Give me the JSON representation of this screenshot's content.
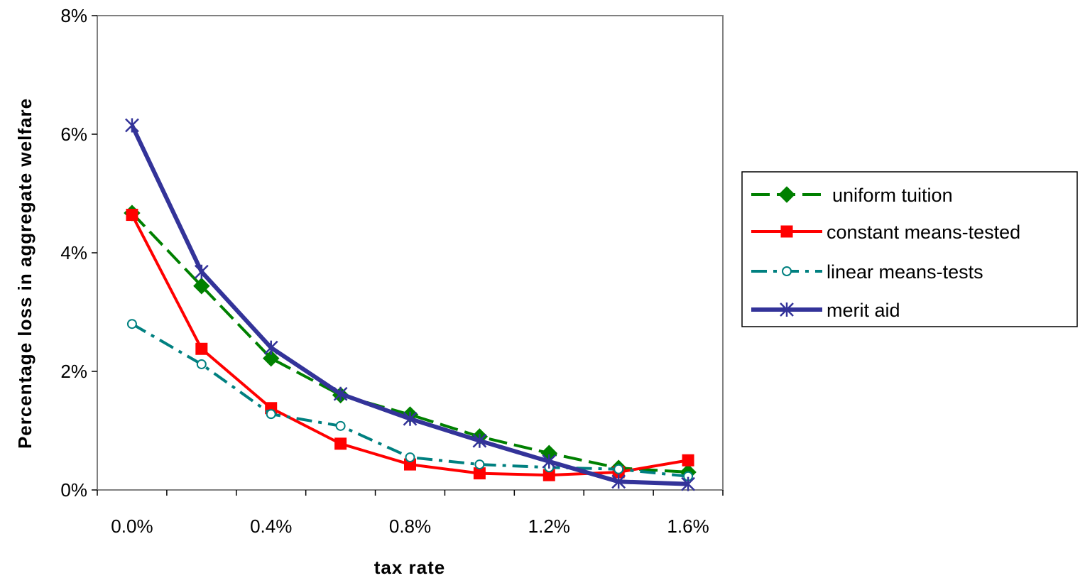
{
  "chart_data": {
    "type": "line",
    "title": "",
    "xlabel": "tax rate",
    "ylabel": "Percentage loss in aggregate welfare",
    "x": [
      0.0,
      0.2,
      0.4,
      0.6,
      0.8,
      1.0,
      1.2,
      1.4,
      1.6
    ],
    "x_tick_values": [
      0.0,
      0.4,
      0.8,
      1.2,
      1.6
    ],
    "x_tick_labels": [
      "0.0%",
      "0.4%",
      "0.8%",
      "1.2%",
      "1.6%"
    ],
    "y_tick_values": [
      0,
      2,
      4,
      6,
      8
    ],
    "y_tick_labels": [
      "0%",
      "2%",
      "4%",
      "6%",
      "8%"
    ],
    "ylim": [
      0,
      8
    ],
    "grid": false,
    "legend_position": "right",
    "series": [
      {
        "name": "uniform tuition",
        "color": "#008000",
        "marker": "diamond",
        "dash": "long-dash",
        "values": [
          4.67,
          3.44,
          2.22,
          1.6,
          1.27,
          0.9,
          0.62,
          0.37,
          0.3
        ]
      },
      {
        "name": "constant means-tested",
        "color": "#ff0000",
        "marker": "square",
        "dash": "solid",
        "values": [
          4.64,
          2.38,
          1.38,
          0.78,
          0.43,
          0.28,
          0.25,
          0.3,
          0.5
        ]
      },
      {
        "name": "linear means-tests",
        "color": "#008080",
        "marker": "open-circle",
        "dash": "dash-dot",
        "values": [
          2.8,
          2.12,
          1.28,
          1.08,
          0.55,
          0.43,
          0.38,
          0.35,
          0.23
        ]
      },
      {
        "name": "merit aid",
        "color": "#333399",
        "marker": "asterisk",
        "dash": "solid",
        "values": [
          6.15,
          3.68,
          2.4,
          1.62,
          1.2,
          0.83,
          0.48,
          0.14,
          0.1
        ]
      }
    ]
  }
}
